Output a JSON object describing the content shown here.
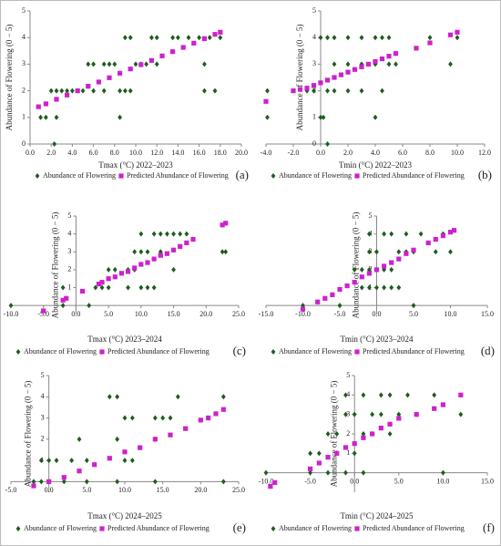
{
  "chart_data": [
    {
      "type": "scatter",
      "panel_label": "(a)",
      "x_label": "Tmax (°C) 2022–2023",
      "y_label": "Abundance of Flowering (0 − 5)",
      "xlim": [
        0,
        20
      ],
      "ylim": [
        0,
        5
      ],
      "xticks": [
        {
          "value": 0,
          "label": "0.0"
        },
        {
          "value": 2,
          "label": "2.0"
        },
        {
          "value": 4,
          "label": "4.0"
        },
        {
          "value": 6,
          "label": "6.0"
        },
        {
          "value": 8,
          "label": "8.0"
        },
        {
          "value": 10,
          "label": "10.0"
        },
        {
          "value": 12,
          "label": "12.0"
        },
        {
          "value": 14,
          "label": "14.0"
        },
        {
          "value": 16,
          "label": "16.0"
        },
        {
          "value": 18,
          "label": "18.0"
        },
        {
          "value": 20,
          "label": "20.0"
        }
      ],
      "yticks": [
        0,
        1,
        2,
        3,
        4,
        5
      ],
      "series": [
        {
          "name": "Abundance of Flowering",
          "color": "#1e5c1e",
          "marker": "diamond",
          "x": [
            1,
            1.5,
            2.5,
            2.3,
            2,
            2.5,
            3,
            3.5,
            4,
            4.5,
            5,
            6,
            7,
            8.5,
            9,
            9.5,
            8.5,
            5.5,
            6,
            7,
            7.5,
            8,
            10,
            10.5,
            11,
            12,
            16.5,
            9,
            9.5,
            11.5,
            12,
            13.5,
            14,
            15,
            16,
            17,
            18,
            16.5,
            17.5
          ],
          "values": [
            1,
            1,
            1,
            0,
            2,
            2,
            2,
            2,
            2,
            2,
            2,
            2,
            2,
            2,
            2,
            2,
            1,
            3,
            3,
            3,
            3,
            3,
            3,
            3,
            3,
            3,
            3,
            4,
            4,
            4,
            4,
            4,
            4,
            4,
            4,
            4,
            4,
            2,
            2
          ]
        },
        {
          "name": "Predicted Abundance of Flowering",
          "color": "#cc22cc",
          "marker": "square",
          "x": [
            0.8,
            1.5,
            2.5,
            3.5,
            4.5,
            5.5,
            6.5,
            7.5,
            8.5,
            9.5,
            10.5,
            11.5,
            12.5,
            13.5,
            14.5,
            15.5,
            16.5,
            17.5,
            18
          ],
          "values": [
            1.4,
            1.51,
            1.68,
            1.84,
            2.0,
            2.17,
            2.33,
            2.49,
            2.66,
            2.82,
            2.98,
            3.14,
            3.31,
            3.47,
            3.63,
            3.79,
            3.96,
            4.12,
            4.2
          ]
        }
      ]
    },
    {
      "type": "scatter",
      "panel_label": "(b)",
      "x_label": "Tmin (°C) 2022–2023",
      "y_label": "Abundance of Flowering (0 − 5)",
      "xlim": [
        -4,
        12
      ],
      "ylim": [
        0,
        5
      ],
      "xticks": [
        {
          "value": -4,
          "label": "-4.0"
        },
        {
          "value": -2,
          "label": "-2.0"
        },
        {
          "value": 0,
          "label": "0.0"
        },
        {
          "value": 2,
          "label": "2.0"
        },
        {
          "value": 4,
          "label": "4.0"
        },
        {
          "value": 6,
          "label": "6.0"
        },
        {
          "value": 8,
          "label": "8.0"
        },
        {
          "value": 10,
          "label": "10.0"
        },
        {
          "value": 12,
          "label": "12.0"
        }
      ],
      "yticks": [
        0,
        1,
        2,
        3,
        4,
        5
      ],
      "series": [
        {
          "name": "Abundance of Flowering",
          "color": "#1e5c1e",
          "marker": "diamond",
          "x": [
            -3.9,
            -3.9,
            0,
            0.2,
            0.5,
            0,
            0.5,
            1,
            2,
            3,
            4,
            4.5,
            5,
            8,
            10,
            -1,
            -0.5,
            0.5,
            1,
            2,
            3,
            4.5,
            1,
            2,
            3,
            4,
            5,
            5.5,
            9.5,
            4
          ],
          "values": [
            2,
            1,
            1,
            1,
            0,
            4,
            4,
            4,
            4,
            4,
            4,
            4,
            4,
            4,
            4,
            2,
            2,
            2,
            2,
            2,
            2,
            2,
            3,
            3,
            3,
            3,
            3,
            3,
            3,
            1
          ]
        },
        {
          "name": "Predicted Abundance of Flowering",
          "color": "#cc22cc",
          "marker": "square",
          "x": [
            -4,
            -2,
            -1.5,
            -1,
            -0.5,
            0,
            0.5,
            1,
            1.5,
            2,
            2.5,
            3,
            3.5,
            4,
            4.5,
            5,
            5.5,
            7,
            8,
            9.5,
            10
          ],
          "values": [
            1.6,
            2,
            2.05,
            2.1,
            2.2,
            2.3,
            2.4,
            2.5,
            2.6,
            2.7,
            2.8,
            2.9,
            3.0,
            3.1,
            3.2,
            3.3,
            3.4,
            3.6,
            3.8,
            4.1,
            4.2
          ]
        }
      ]
    },
    {
      "type": "scatter",
      "panel_label": "(c)",
      "x_label": "Tmax (°C) 2023–2024",
      "y_label": "Abundance of Flowering (0 − 5)",
      "xlim": [
        -10,
        25
      ],
      "ylim": [
        -0.5,
        5
      ],
      "xticks": [
        {
          "value": -10,
          "label": "-10.0"
        },
        {
          "value": -5,
          "label": "-5.0"
        },
        {
          "value": 0,
          "label": "0.0"
        },
        {
          "value": 5,
          "label": "5.0"
        },
        {
          "value": 10,
          "label": "10.0"
        },
        {
          "value": 15,
          "label": "15.0"
        },
        {
          "value": 20,
          "label": "20.0"
        },
        {
          "value": 25,
          "label": "25.0"
        }
      ],
      "yticks": [
        1,
        2,
        3,
        4,
        5
      ],
      "series": [
        {
          "name": "Abundance of Flowering",
          "color": "#1e5c1e",
          "marker": "diamond",
          "x": [
            -10,
            -2,
            2,
            -2,
            3,
            4,
            5,
            8,
            10,
            11,
            12,
            5,
            6,
            8,
            9,
            15,
            9,
            10,
            11,
            13,
            22.5,
            23,
            10,
            12,
            13,
            14,
            15,
            16,
            17
          ],
          "values": [
            0,
            0,
            0,
            1,
            1,
            1,
            1,
            1,
            1,
            1,
            1,
            2,
            2,
            2,
            2,
            2,
            3,
            3,
            3,
            3,
            3,
            3,
            4,
            4,
            4,
            4,
            4,
            4,
            4
          ]
        },
        {
          "name": "Predicted Abundance of Flowering",
          "color": "#cc22cc",
          "marker": "square",
          "x": [
            -5,
            -2,
            -1.5,
            1,
            3.5,
            4,
            5,
            6,
            7,
            8,
            9,
            10,
            11,
            12,
            13,
            14,
            15,
            16,
            17,
            18,
            22.5,
            23
          ],
          "values": [
            -0.3,
            0.3,
            0.4,
            0.8,
            1.2,
            1.3,
            1.5,
            1.6,
            1.8,
            1.9,
            2.1,
            2.3,
            2.4,
            2.6,
            2.8,
            2.9,
            3.1,
            3.3,
            3.5,
            3.7,
            4.5,
            4.6
          ]
        }
      ]
    },
    {
      "type": "scatter",
      "panel_label": "(d)",
      "x_label": "Tmin (°C) 2023–2024",
      "y_label": "Abundance of Flowering (0 − 5)",
      "xlim": [
        -15,
        15
      ],
      "ylim": [
        -0.5,
        5
      ],
      "xticks": [
        {
          "value": -15,
          "label": "-15.0"
        },
        {
          "value": -10,
          "label": "-10.0"
        },
        {
          "value": -5,
          "label": "-5.0"
        },
        {
          "value": 0,
          "label": "0.0"
        },
        {
          "value": 5,
          "label": "5.0"
        },
        {
          "value": 10,
          "label": "10.0"
        },
        {
          "value": 15,
          "label": "15.0"
        }
      ],
      "yticks": [
        1,
        2,
        3,
        4,
        5
      ],
      "series": [
        {
          "name": "Abundance of Flowering",
          "color": "#1e5c1e",
          "marker": "diamond",
          "x": [
            -10,
            -5,
            5,
            -2,
            -1,
            0,
            1,
            2,
            3,
            -3,
            -2,
            -1,
            1,
            2,
            -1,
            0,
            3,
            4,
            5,
            8,
            10,
            -1,
            1,
            2,
            4,
            6,
            9
          ],
          "values": [
            0,
            0,
            0,
            1,
            1,
            1,
            1,
            1,
            1,
            2,
            2,
            2,
            2,
            2,
            3,
            3,
            3,
            3,
            3,
            3,
            3,
            4,
            4,
            4,
            4,
            4,
            4
          ]
        },
        {
          "name": "Predicted Abundance of Flowering",
          "color": "#cc22cc",
          "marker": "square",
          "x": [
            -10,
            -8,
            -7,
            -6,
            -5,
            -4,
            -3,
            -2,
            -1,
            0,
            1,
            2,
            3,
            4,
            5,
            7,
            8,
            9,
            10,
            10.5
          ],
          "values": [
            -0.2,
            0.2,
            0.4,
            0.6,
            0.9,
            1.1,
            1.3,
            1.6,
            1.8,
            2.0,
            2.2,
            2.4,
            2.6,
            2.9,
            3.1,
            3.5,
            3.7,
            3.9,
            4.1,
            4.2
          ]
        }
      ]
    },
    {
      "type": "scatter",
      "panel_label": "(e)",
      "x_label": "Tmax (°C) 2024–2025",
      "y_label": "Abundance of Flowering (0 − 5)",
      "xlim": [
        -5,
        25
      ],
      "ylim": [
        -0.5,
        5
      ],
      "xticks": [
        {
          "value": -5,
          "label": "-5.0"
        },
        {
          "value": 0,
          "label": "0.0"
        },
        {
          "value": 5,
          "label": "5.0"
        },
        {
          "value": 10,
          "label": "10.0"
        },
        {
          "value": 15,
          "label": "15.0"
        },
        {
          "value": 20,
          "label": "20.0"
        },
        {
          "value": 25,
          "label": "25.0"
        }
      ],
      "yticks": [
        1,
        2,
        3,
        4,
        5
      ],
      "series": [
        {
          "name": "Abundance of Flowering",
          "color": "#1e5c1e",
          "marker": "diamond",
          "x": [
            -2,
            -1,
            0,
            2,
            5,
            9,
            14,
            23,
            -1,
            0,
            1,
            3,
            5,
            10,
            11,
            4,
            9,
            14,
            10,
            11,
            14,
            15,
            16,
            21,
            8,
            9,
            17,
            23
          ],
          "values": [
            0,
            0,
            0,
            0,
            0,
            0,
            0,
            0,
            1,
            1,
            1,
            1,
            1,
            1,
            1,
            2,
            2,
            2,
            3,
            3,
            3,
            3,
            3,
            3,
            4,
            4,
            4,
            4
          ]
        },
        {
          "name": "Predicted Abundance of Flowering",
          "color": "#cc22cc",
          "marker": "square",
          "x": [
            -2,
            0,
            2,
            4,
            6,
            8,
            10,
            12,
            14,
            16,
            18,
            20,
            21,
            22,
            23
          ],
          "values": [
            -0.2,
            0,
            0.2,
            0.5,
            0.8,
            1.1,
            1.4,
            1.6,
            2.0,
            2.2,
            2.5,
            2.9,
            3.0,
            3.2,
            3.4
          ]
        }
      ]
    },
    {
      "type": "scatter",
      "panel_label": "(f)",
      "x_label": "Tmin (°C) 2024–2025",
      "y_label": "Abundance of Flowering (0 − 5)",
      "xlim": [
        -10,
        15
      ],
      "ylim": [
        -1,
        5
      ],
      "xticks": [
        {
          "value": -10,
          "label": "-10.0"
        },
        {
          "value": -5,
          "label": "-5.0"
        },
        {
          "value": 0,
          "label": "0.0"
        },
        {
          "value": 5,
          "label": "5.0"
        },
        {
          "value": 10,
          "label": "10.0"
        },
        {
          "value": 15,
          "label": "15.0"
        }
      ],
      "yticks": [
        1,
        2,
        3,
        4,
        5
      ],
      "series": [
        {
          "name": "Abundance of Flowering",
          "color": "#1e5c1e",
          "marker": "diamond",
          "x": [
            -10,
            -5,
            -3,
            -1,
            1,
            10,
            -5,
            -4,
            -2,
            0,
            -3,
            -2,
            1,
            4,
            -1,
            0,
            2,
            3,
            5,
            7,
            12,
            -1,
            1,
            3,
            4,
            6,
            9
          ],
          "values": [
            0,
            0,
            0,
            0,
            0,
            0,
            1,
            1,
            1,
            1,
            2,
            2,
            2,
            2,
            3,
            3,
            3,
            3,
            3,
            3,
            3,
            4,
            4,
            4,
            4,
            4,
            4
          ]
        },
        {
          "name": "Predicted Abundance of Flowering",
          "color": "#cc22cc",
          "marker": "square",
          "x": [
            -9.5,
            -9,
            -5,
            -4,
            -3,
            -2,
            -1,
            0,
            1,
            2,
            3,
            4,
            5,
            7,
            9,
            10,
            12
          ],
          "values": [
            -0.7,
            -0.5,
            0.2,
            0.5,
            0.8,
            1.0,
            1.3,
            1.5,
            1.8,
            2.0,
            2.3,
            2.5,
            2.8,
            3.0,
            3.3,
            3.5,
            4.0
          ]
        }
      ]
    }
  ]
}
